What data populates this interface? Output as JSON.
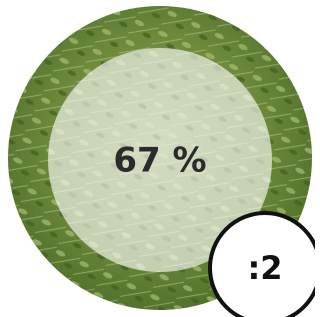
{
  "progress": {
    "label": "67 %"
  },
  "badge": {
    "label": ":2"
  }
}
